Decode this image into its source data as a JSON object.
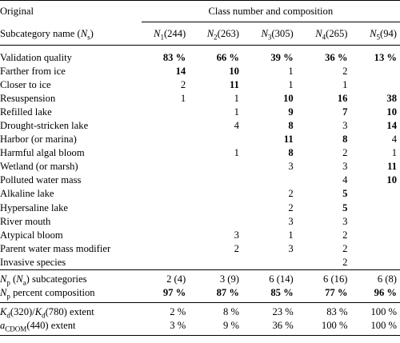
{
  "header": {
    "original": "Original",
    "group": "Class number and composition",
    "subcat_label": "Subcategory name",
    "subcat_symbol": "N",
    "subcat_sub": "s",
    "columns": [
      {
        "sym": "N",
        "sub": "1",
        "count": "(244)"
      },
      {
        "sym": "N",
        "sub": "2",
        "count": "(263)"
      },
      {
        "sym": "N",
        "sub": "3",
        "count": "(305)"
      },
      {
        "sym": "N",
        "sub": "4",
        "count": "(265)"
      },
      {
        "sym": "N",
        "sub": "5",
        "count": "(94)"
      }
    ]
  },
  "rows": [
    {
      "name": "Validation quality",
      "vals": [
        "83 %",
        "66 %",
        "39 %",
        "36 %",
        "13 %"
      ],
      "bold": [
        true,
        true,
        true,
        true,
        true
      ]
    },
    {
      "name": "Farther from ice",
      "vals": [
        "14",
        "10",
        "1",
        "2",
        ""
      ],
      "bold": [
        true,
        true,
        false,
        false,
        false
      ]
    },
    {
      "name": "Closer to ice",
      "vals": [
        "2",
        "11",
        "1",
        "1",
        ""
      ],
      "bold": [
        false,
        true,
        false,
        false,
        false
      ]
    },
    {
      "name": "Resuspension",
      "vals": [
        "1",
        "1",
        "10",
        "16",
        "38"
      ],
      "bold": [
        false,
        false,
        true,
        true,
        true
      ]
    },
    {
      "name": "Refilled lake",
      "vals": [
        "",
        "1",
        "9",
        "7",
        "10"
      ],
      "bold": [
        false,
        false,
        true,
        true,
        true
      ]
    },
    {
      "name": "Drought-stricken lake",
      "vals": [
        "",
        "4",
        "8",
        "3",
        "14"
      ],
      "bold": [
        false,
        false,
        true,
        false,
        true
      ]
    },
    {
      "name": "Harbor (or marina)",
      "vals": [
        "",
        "",
        "11",
        "8",
        "4"
      ],
      "bold": [
        false,
        false,
        true,
        true,
        false
      ]
    },
    {
      "name": "Harmful algal bloom",
      "vals": [
        "",
        "1",
        "8",
        "2",
        "1"
      ],
      "bold": [
        false,
        false,
        true,
        false,
        false
      ]
    },
    {
      "name": "Wetland (or marsh)",
      "vals": [
        "",
        "",
        "3",
        "3",
        "11"
      ],
      "bold": [
        false,
        false,
        false,
        false,
        true
      ]
    },
    {
      "name": "Polluted water mass",
      "vals": [
        "",
        "",
        "",
        "4",
        "10"
      ],
      "bold": [
        false,
        false,
        false,
        false,
        true
      ]
    },
    {
      "name": "Alkaline lake",
      "vals": [
        "",
        "",
        "2",
        "5",
        ""
      ],
      "bold": [
        false,
        false,
        false,
        true,
        false
      ]
    },
    {
      "name": "Hypersaline lake",
      "vals": [
        "",
        "",
        "2",
        "5",
        ""
      ],
      "bold": [
        false,
        false,
        false,
        true,
        false
      ]
    },
    {
      "name": "River mouth",
      "vals": [
        "",
        "",
        "3",
        "3",
        ""
      ],
      "bold": [
        false,
        false,
        false,
        false,
        false
      ]
    },
    {
      "name": "Atypical bloom",
      "vals": [
        "",
        "3",
        "1",
        "2",
        ""
      ],
      "bold": [
        false,
        false,
        false,
        false,
        false
      ]
    },
    {
      "name": "Parent water mass modifier",
      "vals": [
        "",
        "2",
        "3",
        "2",
        ""
      ],
      "bold": [
        false,
        false,
        false,
        false,
        false
      ]
    },
    {
      "name": "Invasive species",
      "vals": [
        "",
        "",
        "",
        "2",
        ""
      ],
      "bold": [
        false,
        false,
        false,
        false,
        false
      ]
    }
  ],
  "summary": {
    "subcats": {
      "label_suffix": "subcategories",
      "vals": [
        "2 (4)",
        "3 (9)",
        "6 (14)",
        "6 (16)",
        "6 (8)"
      ]
    },
    "percent": {
      "label_suffix": "percent composition",
      "vals": [
        "97 %",
        "87 %",
        "85 %",
        "77 %",
        "96 %"
      ]
    }
  },
  "extent": {
    "kd": {
      "label_suffix": "extent",
      "vals": [
        "2 %",
        "8 %",
        "23 %",
        "83 %",
        "100 %"
      ]
    },
    "acdom": {
      "label_suffix": "extent",
      "vals": [
        "3 %",
        "9 %",
        "36 %",
        "100 %",
        "100 %"
      ]
    }
  }
}
